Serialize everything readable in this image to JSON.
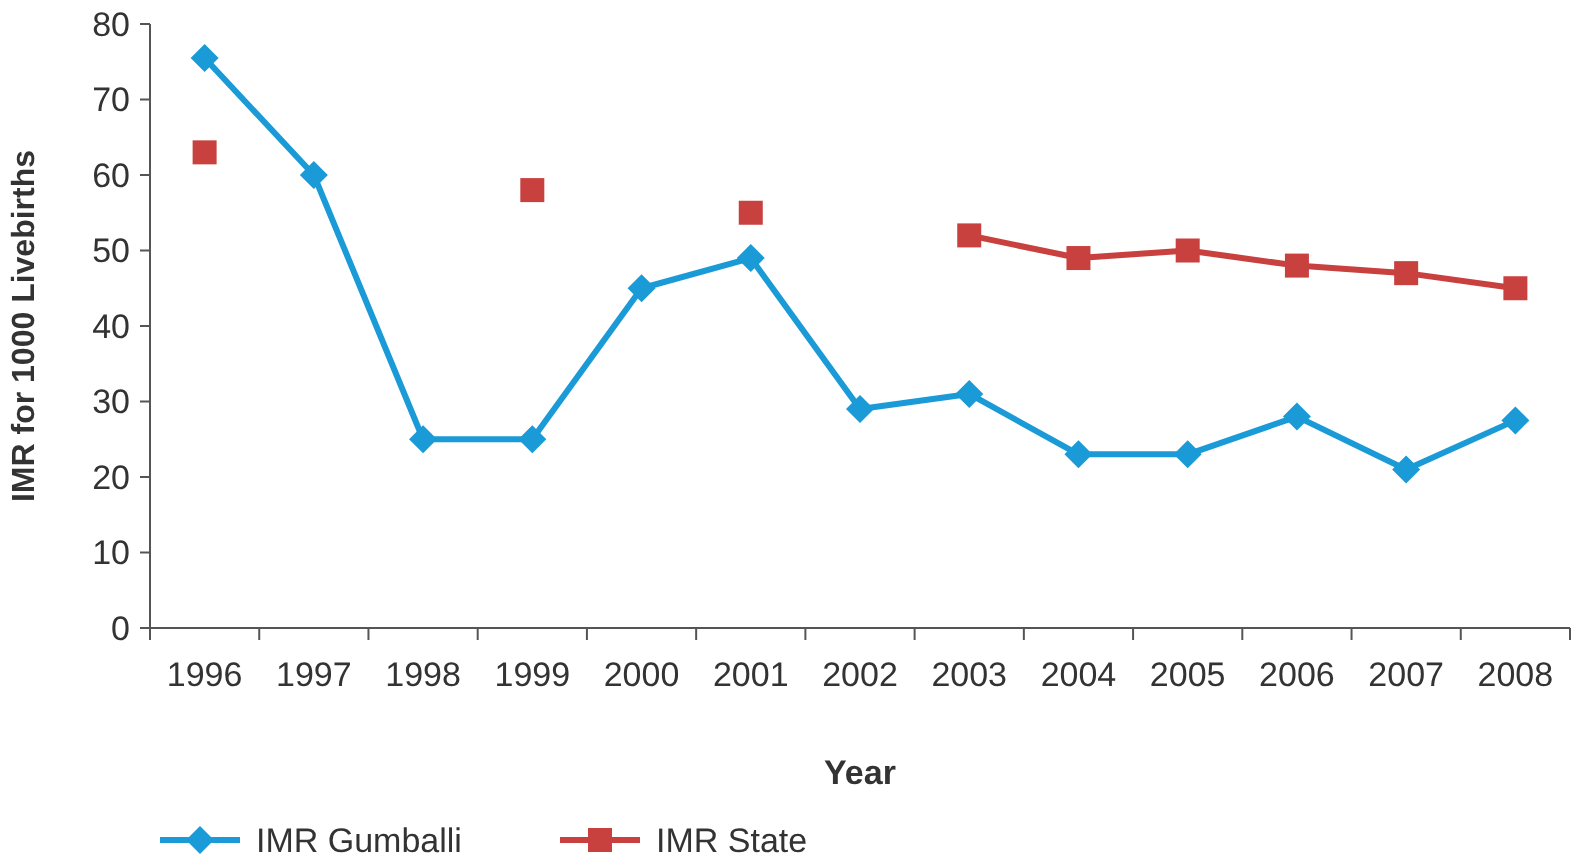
{
  "chart_data": {
    "type": "line",
    "xlabel": "Year",
    "ylabel": "IMR for 1000 Livebirths",
    "categories": [
      "1996",
      "1997",
      "1998",
      "1999",
      "2000",
      "2001",
      "2002",
      "2003",
      "2004",
      "2005",
      "2006",
      "2007",
      "2008"
    ],
    "series": [
      {
        "name": "IMR Gumballi",
        "color": "#1a9ad6",
        "marker": "diamond",
        "values": [
          75.5,
          60,
          25,
          25,
          45,
          49,
          29,
          31,
          23,
          23,
          28,
          21,
          27.5
        ]
      },
      {
        "name": "IMR State",
        "color": "#c8413f",
        "marker": "square",
        "values": [
          63,
          null,
          null,
          58,
          null,
          55,
          null,
          52,
          49,
          50,
          48,
          47,
          45
        ]
      }
    ],
    "ylim": [
      0,
      80
    ],
    "yticks": [
      0,
      10,
      20,
      30,
      40,
      50,
      60,
      70,
      80
    ],
    "grid": false,
    "legend": "bottom left",
    "line_style": "solid"
  }
}
